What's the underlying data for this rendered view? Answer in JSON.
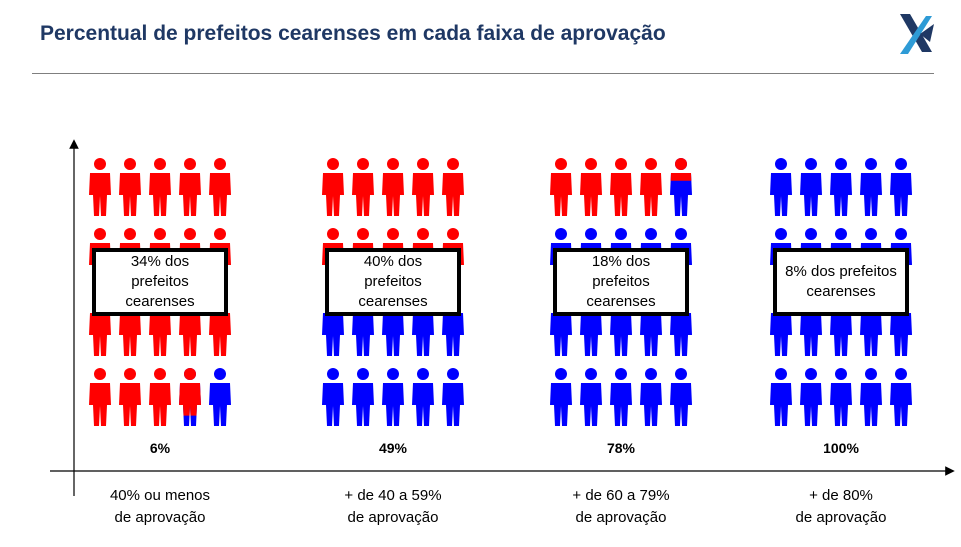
{
  "header": {
    "title": "Percentual de prefeitos cearenses em cada faixa de aprovação"
  },
  "colors": {
    "disapprove": "#ff0000",
    "approve": "#0000ff",
    "title": "#1f3864",
    "logo_dark": "#1f3864",
    "logo_light": "#2e9bd6"
  },
  "icons": {
    "logo": "x-arrow-logo",
    "figure": "person-icon"
  },
  "chart_data": {
    "type": "bar",
    "grid": false,
    "groups": [
      {
        "line1": "40% ou menos",
        "line2": "de aprovação",
        "approval_fraction": 0.06,
        "approval_label": "6%",
        "share_label": "34% dos prefeitos cearenses"
      },
      {
        "line1": "+ de 40 a 59%",
        "line2": "de aprovação",
        "approval_fraction": 0.49,
        "approval_label": "49%",
        "share_label": "40% dos prefeitos cearenses"
      },
      {
        "line1": "+ de 60 a 79%",
        "line2": "de aprovação",
        "approval_fraction": 0.78,
        "approval_label": "78%",
        "share_label": "18% dos prefeitos cearenses"
      },
      {
        "line1": "+ de 80%",
        "line2": "de aprovação",
        "approval_fraction": 1.0,
        "approval_label": "100%",
        "share_label": "8% dos prefeitos cearenses"
      }
    ]
  }
}
